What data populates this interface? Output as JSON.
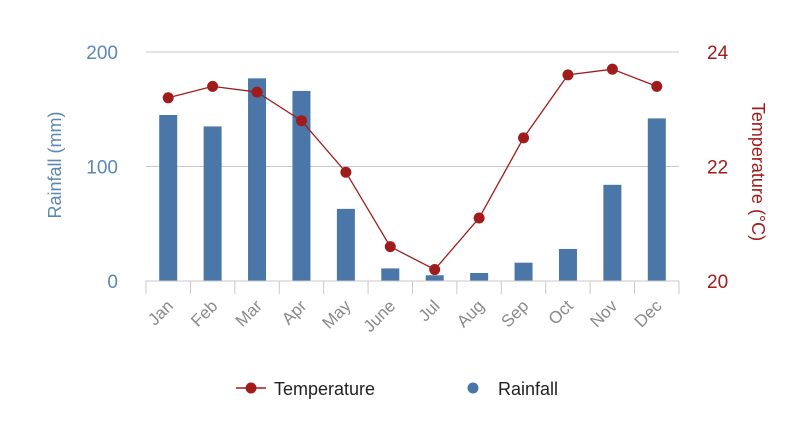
{
  "chart_data": {
    "type": "bar+line",
    "categories": [
      "Jan",
      "Feb",
      "Mar",
      "Apr",
      "May",
      "June",
      "Jul",
      "Aug",
      "Sep",
      "Oct",
      "Nov",
      "Dec"
    ],
    "series": [
      {
        "name": "Rainfall",
        "type": "bar",
        "axis": "left",
        "color": "#4a76a8",
        "values": [
          145,
          135,
          177,
          166,
          63,
          11,
          5,
          7,
          16,
          28,
          84,
          142
        ]
      },
      {
        "name": "Temperature",
        "type": "line",
        "axis": "right",
        "color": "#a01c1c",
        "values": [
          23.2,
          23.4,
          23.3,
          22.8,
          21.9,
          20.6,
          20.2,
          21.1,
          22.5,
          23.6,
          23.7,
          23.4
        ]
      }
    ],
    "y_left": {
      "label": "Rainfall (mm)",
      "ticks": [
        "0",
        "100",
        "200"
      ],
      "tick_values": [
        0,
        100,
        200
      ],
      "range": [
        0,
        200
      ],
      "color": "#5b87b5"
    },
    "y_right": {
      "label": "Temperature (°C)",
      "ticks": [
        "20",
        "22",
        "24"
      ],
      "tick_values": [
        20,
        22,
        24
      ],
      "range": [
        20,
        24
      ],
      "color": "#a01c1c"
    },
    "grid": true,
    "legend": {
      "position": "bottom",
      "entries": [
        "Temperature",
        "Rainfall"
      ]
    }
  }
}
